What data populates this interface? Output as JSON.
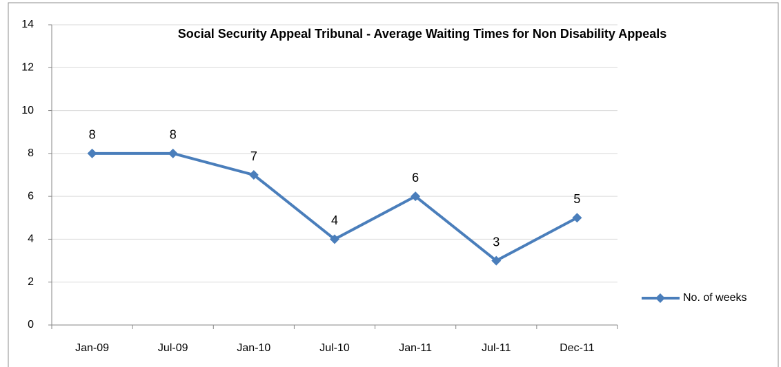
{
  "chart_data": {
    "type": "line",
    "title": "Social Security Appeal Tribunal - Average Waiting Times for Non Disability Appeals",
    "categories": [
      "Jan-09",
      "Jul-09",
      "Jan-10",
      "Jul-10",
      "Jan-11",
      "Jul-11",
      "Dec-11"
    ],
    "series": [
      {
        "name": "No. of weeks",
        "color": "#4a7ebb",
        "values": [
          8,
          8,
          7,
          4,
          6,
          3,
          5
        ]
      }
    ],
    "ylim": [
      0,
      14
    ],
    "yticks": [
      0,
      2,
      4,
      6,
      8,
      10,
      12,
      14
    ],
    "grid": true,
    "legend": "right"
  }
}
